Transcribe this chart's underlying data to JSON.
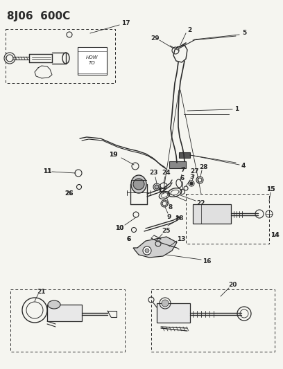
{
  "title": "8J06  600C",
  "bg_color": "#f5f5f0",
  "line_color": "#2a2a2a",
  "fig_width": 4.08,
  "fig_height": 5.33,
  "dpi": 100
}
